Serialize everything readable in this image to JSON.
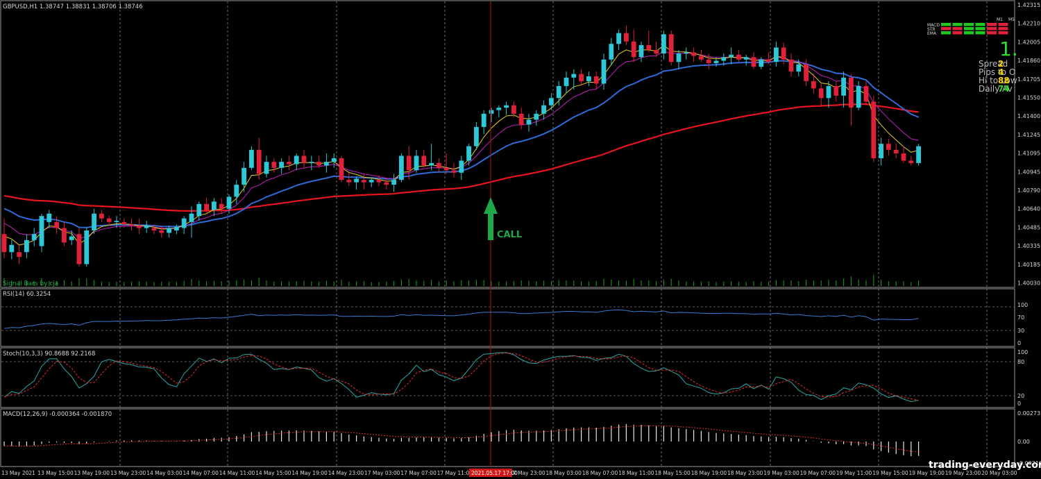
{
  "symbol_header": "GBPUSD,H1  1.38747 1.38831 1.38706 1.38746",
  "price_axis": [
    "1.42315",
    "1.42210",
    "1.42005",
    "1.41860",
    "1.41705",
    "1.41550",
    "1.41400",
    "1.41245",
    "1.41095",
    "1.40945",
    "1.40790",
    "1.40640",
    "1.40485",
    "1.40335",
    "1.40185",
    "1.40030"
  ],
  "signal_bars_label": "Signal Bars by cja",
  "call_label": "CALL",
  "panel_rsi": {
    "label": "RSI(14) 60.3254",
    "levels": [
      "100",
      "70",
      "30",
      "0"
    ]
  },
  "panel_stoch": {
    "label": "Stoch(10,3,3) 90.8688 92.2168",
    "levels": [
      "100",
      "80",
      "20",
      "0"
    ]
  },
  "panel_macd": {
    "label": "MACD(12,26,9) -0.000364 -0.001870",
    "levels": [
      "0.002737",
      "0.00",
      "-0.002187"
    ]
  },
  "time_axis": [
    "13 May 2021",
    "13 May 15:00",
    "13 May 19:00",
    "13 May 23:00",
    "14 May 03:00",
    "14 May 07:00",
    "14 May 11:00",
    "14 May 15:00",
    "14 May 19:00",
    "14 May 23:00",
    "17 May 03:00",
    "17 May 07:00",
    "17 May 11:00",
    "17 May 19:00",
    "17 May 23:00",
    "18 May 03:00",
    "18 May 07:00",
    "18 May 11:00",
    "18 May 15:00",
    "18 May 19:00",
    "18 May 23:00",
    "19 May 03:00",
    "19 May 07:00",
    "19 May 11:00",
    "19 May 15:00",
    "19 May 19:00",
    "19 May 23:00",
    "20 May 03:00"
  ],
  "time_marker": "2021.05.17 17:00",
  "signal_box": {
    "tf_labels": [
      "M1",
      "M5"
    ],
    "rows": [
      "MACD",
      "STR",
      "EMA"
    ]
  },
  "info_panel": {
    "big_value": "1.",
    "lines": [
      "Spread",
      "Pips to O",
      "Hi to Low",
      "Daily Av"
    ],
    "values": [
      "2",
      "4",
      "88",
      "74"
    ]
  },
  "watermark": "trading-everyday.com",
  "colors": {
    "bull": "#2ec8d8",
    "bear": "#e0213a",
    "ema_red": "#e8141e",
    "ema_blue": "#2f6bd8",
    "ema_magenta": "#c020c0",
    "ema_yellow": "#e8d020",
    "call_arrow": "#1fa84a",
    "rsi_line": "#3a7bd5",
    "stoch_main": "#2aa8a8",
    "stoch_signal": "#e03030"
  },
  "chart_data": {
    "type": "candlestick",
    "ylim": [
      1.4003,
      1.4236
    ],
    "candles": [
      [
        1.4045,
        1.4058,
        1.4025,
        1.403
      ],
      [
        1.403,
        1.404,
        1.4024,
        1.4036
      ],
      [
        1.403,
        1.4036,
        1.402,
        1.4026
      ],
      [
        1.403,
        1.4045,
        1.4025,
        1.404
      ],
      [
        1.404,
        1.405,
        1.4035,
        1.4045
      ],
      [
        1.4035,
        1.4062,
        1.403,
        1.406
      ],
      [
        1.4055,
        1.4065,
        1.405,
        1.4062
      ],
      [
        1.4055,
        1.406,
        1.4045,
        1.405
      ],
      [
        1.405,
        1.4055,
        1.4035,
        1.4038
      ],
      [
        1.404,
        1.4048,
        1.4036,
        1.4043
      ],
      [
        1.4045,
        1.405,
        1.4018,
        1.402
      ],
      [
        1.402,
        1.405,
        1.4018,
        1.4048
      ],
      [
        1.4048,
        1.4066,
        1.4045,
        1.4062
      ],
      [
        1.4062,
        1.4065,
        1.4055,
        1.4058
      ],
      [
        1.4058,
        1.406,
        1.4052,
        1.4055
      ],
      [
        1.4055,
        1.406,
        1.405,
        1.4056
      ],
      [
        1.4055,
        1.4058,
        1.405,
        1.4053
      ],
      [
        1.4053,
        1.4058,
        1.4048,
        1.4052
      ],
      [
        1.4052,
        1.4058,
        1.4045,
        1.405
      ],
      [
        1.405,
        1.4056,
        1.4046,
        1.4052
      ],
      [
        1.405,
        1.4053,
        1.4045,
        1.4048
      ],
      [
        1.4048,
        1.4052,
        1.4042,
        1.4046
      ],
      [
        1.4046,
        1.4052,
        1.4042,
        1.405
      ],
      [
        1.4048,
        1.4053,
        1.4045,
        1.4051
      ],
      [
        1.405,
        1.406,
        1.4045,
        1.4058
      ],
      [
        1.4055,
        1.4068,
        1.4042,
        1.4062
      ],
      [
        1.406,
        1.4072,
        1.4056,
        1.407
      ],
      [
        1.407,
        1.4075,
        1.4062,
        1.4065
      ],
      [
        1.4065,
        1.4075,
        1.406,
        1.4072
      ],
      [
        1.407,
        1.4075,
        1.4062,
        1.4066
      ],
      [
        1.4066,
        1.4078,
        1.4062,
        1.4076
      ],
      [
        1.4076,
        1.409,
        1.407,
        1.4086
      ],
      [
        1.4086,
        1.4105,
        1.408,
        1.41
      ],
      [
        1.41,
        1.4118,
        1.4098,
        1.4115
      ],
      [
        1.4115,
        1.4125,
        1.409,
        1.4095
      ],
      [
        1.4095,
        1.411,
        1.4092,
        1.4105
      ],
      [
        1.4105,
        1.4108,
        1.4096,
        1.41
      ],
      [
        1.41,
        1.4108,
        1.4095,
        1.4105
      ],
      [
        1.4105,
        1.411,
        1.4098,
        1.4103
      ],
      [
        1.4103,
        1.4112,
        1.4098,
        1.411
      ],
      [
        1.411,
        1.4115,
        1.41,
        1.4104
      ],
      [
        1.4104,
        1.411,
        1.4098,
        1.4105
      ],
      [
        1.4105,
        1.411,
        1.41,
        1.4102
      ],
      [
        1.4102,
        1.4112,
        1.4096,
        1.4105
      ],
      [
        1.4105,
        1.4112,
        1.41,
        1.4108
      ],
      [
        1.4108,
        1.411,
        1.4088,
        1.409
      ],
      [
        1.409,
        1.4096,
        1.4085,
        1.4088
      ],
      [
        1.4088,
        1.4093,
        1.4082,
        1.4091
      ],
      [
        1.409,
        1.4095,
        1.4082,
        1.4088
      ],
      [
        1.4088,
        1.4092,
        1.4084,
        1.409
      ],
      [
        1.409,
        1.4094,
        1.4085,
        1.4088
      ],
      [
        1.4088,
        1.4092,
        1.4082,
        1.4086
      ],
      [
        1.4086,
        1.4095,
        1.408,
        1.409
      ],
      [
        1.409,
        1.4112,
        1.4088,
        1.411
      ],
      [
        1.411,
        1.4118,
        1.409,
        1.4098
      ],
      [
        1.4098,
        1.4115,
        1.4096,
        1.411
      ],
      [
        1.411,
        1.4115,
        1.41,
        1.4102
      ],
      [
        1.4102,
        1.412,
        1.4098,
        1.4104
      ],
      [
        1.4104,
        1.4108,
        1.4096,
        1.41
      ],
      [
        1.41,
        1.4112,
        1.4095,
        1.4098
      ],
      [
        1.4098,
        1.4104,
        1.4092,
        1.4096
      ],
      [
        1.4096,
        1.411,
        1.409,
        1.4106
      ],
      [
        1.4106,
        1.412,
        1.4102,
        1.4118
      ],
      [
        1.4118,
        1.4138,
        1.4115,
        1.4134
      ],
      [
        1.4134,
        1.4148,
        1.4128,
        1.4145
      ],
      [
        1.4145,
        1.415,
        1.4138,
        1.4148
      ],
      [
        1.4148,
        1.4152,
        1.4142,
        1.415
      ],
      [
        1.415,
        1.4155,
        1.4144,
        1.4152
      ],
      [
        1.4152,
        1.4155,
        1.4142,
        1.4145
      ],
      [
        1.4145,
        1.415,
        1.4132,
        1.4136
      ],
      [
        1.4136,
        1.4145,
        1.413,
        1.414
      ],
      [
        1.414,
        1.4148,
        1.4135,
        1.4145
      ],
      [
        1.4145,
        1.4156,
        1.414,
        1.4152
      ],
      [
        1.4152,
        1.4162,
        1.4148,
        1.4158
      ],
      [
        1.4158,
        1.4172,
        1.4152,
        1.4168
      ],
      [
        1.4168,
        1.418,
        1.4162,
        1.4175
      ],
      [
        1.4175,
        1.4182,
        1.4165,
        1.4178
      ],
      [
        1.4178,
        1.4182,
        1.4168,
        1.4172
      ],
      [
        1.4172,
        1.418,
        1.4168,
        1.4176
      ],
      [
        1.4176,
        1.418,
        1.4165,
        1.417
      ],
      [
        1.417,
        1.4195,
        1.4165,
        1.419
      ],
      [
        1.419,
        1.4208,
        1.4185,
        1.4203
      ],
      [
        1.4203,
        1.4215,
        1.4198,
        1.4212
      ],
      [
        1.4212,
        1.4218,
        1.4202,
        1.4205
      ],
      [
        1.4205,
        1.4215,
        1.4188,
        1.4192
      ],
      [
        1.4192,
        1.4205,
        1.4188,
        1.4202
      ],
      [
        1.4202,
        1.4214,
        1.4196,
        1.4198
      ],
      [
        1.4198,
        1.4205,
        1.4192,
        1.4195
      ],
      [
        1.4195,
        1.4214,
        1.419,
        1.4211
      ],
      [
        1.4211,
        1.4214,
        1.4185,
        1.4188
      ],
      [
        1.4188,
        1.4198,
        1.4182,
        1.4195
      ],
      [
        1.4195,
        1.42,
        1.419,
        1.4196
      ],
      [
        1.4196,
        1.42,
        1.4188,
        1.4193
      ],
      [
        1.4193,
        1.4198,
        1.4188,
        1.419
      ],
      [
        1.419,
        1.4195,
        1.4182,
        1.4187
      ],
      [
        1.4187,
        1.4192,
        1.4184,
        1.4189
      ],
      [
        1.4189,
        1.4195,
        1.4185,
        1.4192
      ],
      [
        1.4192,
        1.42,
        1.4186,
        1.4194
      ],
      [
        1.4194,
        1.4198,
        1.4188,
        1.419
      ],
      [
        1.419,
        1.4194,
        1.4185,
        1.4192
      ],
      [
        1.4192,
        1.4196,
        1.4182,
        1.4184
      ],
      [
        1.4184,
        1.4192,
        1.4182,
        1.419
      ],
      [
        1.419,
        1.4196,
        1.4186,
        1.4188
      ],
      [
        1.4188,
        1.4205,
        1.4184,
        1.42
      ],
      [
        1.42,
        1.4204,
        1.4186,
        1.419
      ],
      [
        1.419,
        1.4195,
        1.4176,
        1.418
      ],
      [
        1.418,
        1.419,
        1.4176,
        1.4186
      ],
      [
        1.4186,
        1.419,
        1.4168,
        1.4172
      ],
      [
        1.4172,
        1.4178,
        1.4162,
        1.4166
      ],
      [
        1.4166,
        1.417,
        1.4152,
        1.4158
      ],
      [
        1.4158,
        1.4172,
        1.415,
        1.4168
      ],
      [
        1.4168,
        1.4172,
        1.4155,
        1.416
      ],
      [
        1.416,
        1.418,
        1.415,
        1.4175
      ],
      [
        1.4175,
        1.4178,
        1.4135,
        1.415
      ],
      [
        1.415,
        1.4172,
        1.4148,
        1.4168
      ],
      [
        1.4168,
        1.4172,
        1.4152,
        1.4155
      ],
      [
        1.4155,
        1.416,
        1.4105,
        1.4108
      ],
      [
        1.4108,
        1.4125,
        1.4102,
        1.412
      ],
      [
        1.412,
        1.4124,
        1.411,
        1.4115
      ],
      [
        1.4115,
        1.412,
        1.4108,
        1.4112
      ],
      [
        1.4112,
        1.4118,
        1.4104,
        1.4106
      ],
      [
        1.4106,
        1.411,
        1.4102,
        1.4104
      ],
      [
        1.4104,
        1.412,
        1.4102,
        1.4118
      ]
    ]
  }
}
